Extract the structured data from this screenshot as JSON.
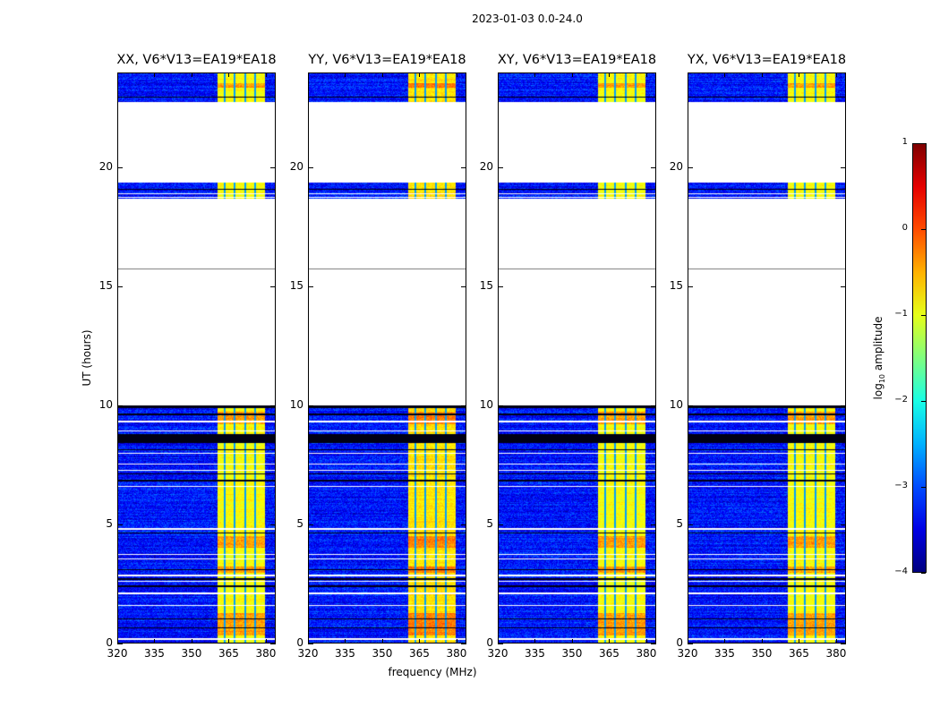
{
  "chart_data": {
    "type": "heatmap",
    "title": "2023-01-03 0.0-24.0",
    "xlabel": "frequency (MHz)",
    "ylabel": "UT (hours)",
    "xlim": [
      320,
      384
    ],
    "ylim": [
      0,
      24
    ],
    "xticks": [
      320,
      335,
      350,
      365,
      380
    ],
    "yticks": [
      0,
      5,
      10,
      15,
      20
    ],
    "panels": [
      {
        "title": "XX, V6*V13=EA19*EA18",
        "seed": 11
      },
      {
        "title": "YY, V6*V13=EA19*EA18",
        "seed": 23
      },
      {
        "title": "XY, V6*V13=EA19*EA18",
        "seed": 37
      },
      {
        "title": "YX, V6*V13=EA19*EA18",
        "seed": 51
      }
    ],
    "colorbar": {
      "label_main": "log",
      "label_sub": "10",
      "label_rest": " amplitude",
      "colormap": "jet",
      "range": [
        -4,
        1
      ],
      "ticks": [
        "1",
        "0",
        "−1",
        "−2",
        "−3",
        "−4"
      ],
      "tick_values": [
        1,
        0,
        -1,
        -2,
        -3,
        -4
      ]
    },
    "valid_time_ranges_hours": [
      [
        0,
        10.0
      ],
      [
        18.7,
        19.4
      ],
      [
        22.8,
        24
      ]
    ],
    "thin_line_hour": 15.75,
    "flagged_black_rows_hours": [
      [
        8.4,
        8.8
      ],
      [
        9.9,
        10.0
      ],
      [
        8.1,
        8.15
      ],
      [
        7.1,
        7.15
      ],
      [
        6.8,
        6.85
      ],
      [
        9.6,
        9.65
      ],
      [
        0.6,
        0.63
      ],
      [
        1.0,
        1.03
      ],
      [
        1.8,
        1.83
      ],
      [
        2.35,
        2.4
      ],
      [
        2.65,
        2.7
      ],
      [
        3.05,
        3.08
      ],
      [
        4.6,
        4.65
      ],
      [
        19.1,
        19.13
      ],
      [
        23.0,
        23.03
      ]
    ],
    "white_gap_rows_hours": [
      [
        0.1,
        0.2
      ],
      [
        1.55,
        1.6
      ],
      [
        2.05,
        2.12
      ],
      [
        2.55,
        2.6
      ],
      [
        2.8,
        2.87
      ],
      [
        3.5,
        3.55
      ],
      [
        3.7,
        3.75
      ],
      [
        4.75,
        4.82
      ],
      [
        6.55,
        6.62
      ],
      [
        7.25,
        7.3
      ],
      [
        7.5,
        7.55
      ],
      [
        7.95,
        8.0
      ],
      [
        8.9,
        8.95
      ],
      [
        9.3,
        9.35
      ],
      [
        18.75,
        18.8
      ],
      [
        18.9,
        18.95
      ]
    ],
    "signal_band_mhz": [
      360.5,
      380
    ],
    "band_dips_mhz": [
      363.5,
      367.5,
      372,
      376
    ],
    "background_log_amp": -3.3,
    "band_log_amp": -0.9,
    "hot_rows_hours": [
      [
        0.3,
        1.25
      ],
      [
        2.95,
        3.2
      ],
      [
        4.0,
        4.5
      ],
      [
        9.2,
        9.75
      ],
      [
        23.4,
        23.6
      ]
    ]
  }
}
